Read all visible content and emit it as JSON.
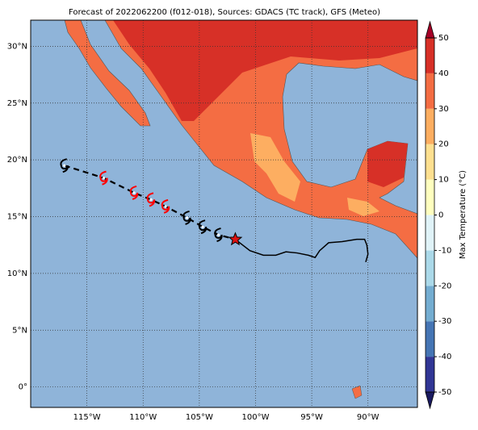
{
  "map": {
    "title": "Forecast of 2022062200 (f012-018), Sources: GDACS (TC track), GFS (Meteo)",
    "xlim": [
      -120,
      -85.6
    ],
    "ylim": [
      -1.8,
      32.3
    ],
    "xticks": [
      {
        "value": -115,
        "label": "115°W"
      },
      {
        "value": -110,
        "label": "110°W"
      },
      {
        "value": -105,
        "label": "105°W"
      },
      {
        "value": -100,
        "label": "100°W"
      },
      {
        "value": -95,
        "label": "95°W"
      },
      {
        "value": -90,
        "label": "90°W"
      }
    ],
    "yticks": [
      {
        "value": 0,
        "label": "0°"
      },
      {
        "value": 5,
        "label": "5°N"
      },
      {
        "value": 10,
        "label": "10°N"
      },
      {
        "value": 15,
        "label": "15°N"
      },
      {
        "value": 20,
        "label": "20°N"
      },
      {
        "value": 25,
        "label": "25°N"
      },
      {
        "value": 30,
        "label": "30°N"
      }
    ],
    "grid": true,
    "colorbar": {
      "label": "Max Temperature (°C)",
      "lim": [
        -50,
        50
      ],
      "ticks": [
        -50,
        -40,
        -30,
        -20,
        -10,
        0,
        10,
        20,
        30,
        40,
        50
      ],
      "colors": [
        "#313695",
        "#4575b4",
        "#74add1",
        "#abd9e9",
        "#e0f3f8",
        "#ffffbf",
        "#fee090",
        "#fdae61",
        "#f46d43",
        "#d73027"
      ],
      "under_color": "#1a1a60",
      "over_color": "#a50026"
    },
    "forecast_track": {
      "lon": [
        -117.0,
        -113.5,
        -110.8,
        -109.3,
        -108.0,
        -106.1,
        -104.7,
        -103.3
      ],
      "lat": [
        19.5,
        18.4,
        17.1,
        16.5,
        15.9,
        14.9,
        14.1,
        13.4
      ],
      "colors": [
        "#000000",
        "#ff0000",
        "#ff0000",
        "#ff0000",
        "#ff0000",
        "#000000",
        "#000000",
        "#000000"
      ]
    },
    "current_position": {
      "lon": -101.8,
      "lat": 13.0,
      "color": "#dd1111"
    },
    "past_track": {
      "lon": [
        -101.8,
        -100.5,
        -99.3,
        -98.2,
        -97.3,
        -96.3,
        -95.3,
        -94.7,
        -94.3,
        -93.5,
        -92.3,
        -91.0,
        -90.3,
        -90.1,
        -90.0,
        -90.2
      ],
      "lat": [
        13.0,
        12.0,
        11.6,
        11.6,
        11.9,
        11.8,
        11.6,
        11.4,
        12.0,
        12.7,
        12.8,
        13.0,
        13.0,
        12.5,
        11.7,
        11.0
      ]
    }
  }
}
